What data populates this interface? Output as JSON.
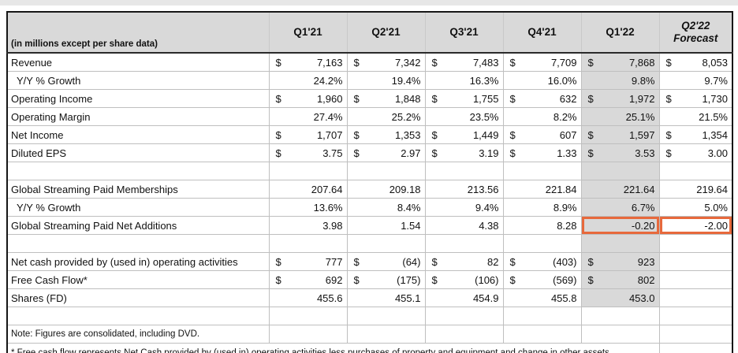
{
  "window": {
    "top_strip_color": "#e7e7e7",
    "page_bg": "#ffffff"
  },
  "table": {
    "unit_note": "(in millions except per share data)",
    "colors": {
      "header_bg": "#d9d9d9",
      "highlight_column_bg": "#d9d9d9",
      "grid_line": "#bfbfbf",
      "outer_border": "#161616",
      "callout_border": "#e7693c"
    },
    "columns": [
      {
        "id": "q1-21",
        "label": "Q1'21"
      },
      {
        "id": "q2-21",
        "label": "Q2'21"
      },
      {
        "id": "q3-21",
        "label": "Q3'21"
      },
      {
        "id": "q4-21",
        "label": "Q4'21"
      },
      {
        "id": "q1-22",
        "label": "Q1'22",
        "highlight_column": true
      },
      {
        "id": "q2-22-forecast",
        "label": "Q2'22",
        "label_line2": "Forecast",
        "italic": true
      }
    ],
    "rows": [
      {
        "type": "data",
        "label": "Revenue",
        "gray": true,
        "cells": [
          {
            "d": "$",
            "v": "7,163"
          },
          {
            "d": "$",
            "v": "7,342"
          },
          {
            "d": "$",
            "v": "7,483"
          },
          {
            "d": "$",
            "v": "7,709"
          },
          {
            "d": "$",
            "v": "7,868"
          },
          {
            "d": "$",
            "v": "8,053"
          }
        ]
      },
      {
        "type": "data",
        "label": "Y/Y % Growth",
        "indent": true,
        "gray": true,
        "cells": [
          {
            "v": "24.2%"
          },
          {
            "v": "19.4%"
          },
          {
            "v": "16.3%"
          },
          {
            "v": "16.0%"
          },
          {
            "v": "9.8%"
          },
          {
            "v": "9.7%"
          }
        ]
      },
      {
        "type": "data",
        "label": "Operating Income",
        "gray": true,
        "cells": [
          {
            "d": "$",
            "v": "1,960"
          },
          {
            "d": "$",
            "v": "1,848"
          },
          {
            "d": "$",
            "v": "1,755"
          },
          {
            "d": "$",
            "v": "632"
          },
          {
            "d": "$",
            "v": "1,972"
          },
          {
            "d": "$",
            "v": "1,730"
          }
        ]
      },
      {
        "type": "data",
        "label": "Operating Margin",
        "gray": true,
        "cells": [
          {
            "v": "27.4%"
          },
          {
            "v": "25.2%"
          },
          {
            "v": "23.5%"
          },
          {
            "v": "8.2%"
          },
          {
            "v": "25.1%"
          },
          {
            "v": "21.5%"
          }
        ]
      },
      {
        "type": "data",
        "label": "Net Income",
        "gray": true,
        "cells": [
          {
            "d": "$",
            "v": "1,707"
          },
          {
            "d": "$",
            "v": "1,353"
          },
          {
            "d": "$",
            "v": "1,449"
          },
          {
            "d": "$",
            "v": "607"
          },
          {
            "d": "$",
            "v": "1,597"
          },
          {
            "d": "$",
            "v": "1,354"
          }
        ]
      },
      {
        "type": "data",
        "label": "Diluted EPS",
        "gray": true,
        "cells": [
          {
            "d": "$",
            "v": "3.75"
          },
          {
            "d": "$",
            "v": "2.97"
          },
          {
            "d": "$",
            "v": "3.19"
          },
          {
            "d": "$",
            "v": "1.33"
          },
          {
            "d": "$",
            "v": "3.53"
          },
          {
            "d": "$",
            "v": "3.00"
          }
        ]
      },
      {
        "type": "spacer",
        "gray": true
      },
      {
        "type": "data",
        "label": "Global Streaming Paid Memberships",
        "gray": true,
        "cells": [
          {
            "v": "207.64"
          },
          {
            "v": "209.18"
          },
          {
            "v": "213.56"
          },
          {
            "v": "221.84"
          },
          {
            "v": "221.64"
          },
          {
            "v": "219.64"
          }
        ]
      },
      {
        "type": "data",
        "label": "Y/Y % Growth",
        "indent": true,
        "gray": true,
        "cells": [
          {
            "v": "13.6%"
          },
          {
            "v": "8.4%"
          },
          {
            "v": "9.4%"
          },
          {
            "v": "8.9%"
          },
          {
            "v": "6.7%"
          },
          {
            "v": "5.0%"
          }
        ]
      },
      {
        "type": "data",
        "label": "Global Streaming Paid Net Additions",
        "gray": true,
        "cells": [
          {
            "v": "3.98"
          },
          {
            "v": "1.54"
          },
          {
            "v": "4.38"
          },
          {
            "v": "8.28"
          },
          {
            "v": "-0.20",
            "callout": true
          },
          {
            "v": "-2.00",
            "callout": true
          }
        ]
      },
      {
        "type": "spacer",
        "gray": true
      },
      {
        "type": "data",
        "label": "Net cash provided by (used in) operating activities",
        "gray": true,
        "cells": [
          {
            "d": "$",
            "v": "777"
          },
          {
            "d": "$",
            "v": "(64)"
          },
          {
            "d": "$",
            "v": "82"
          },
          {
            "d": "$",
            "v": "(403)"
          },
          {
            "d": "$",
            "v": "923"
          },
          null
        ]
      },
      {
        "type": "data",
        "label": "Free Cash Flow*",
        "gray": true,
        "cells": [
          {
            "d": "$",
            "v": "692"
          },
          {
            "d": "$",
            "v": "(175)"
          },
          {
            "d": "$",
            "v": "(106)"
          },
          {
            "d": "$",
            "v": "(569)"
          },
          {
            "d": "$",
            "v": "802"
          },
          null
        ]
      },
      {
        "type": "data",
        "label": "Shares (FD)",
        "gray": true,
        "cells": [
          {
            "v": "455.6"
          },
          {
            "v": "455.1"
          },
          {
            "v": "454.9"
          },
          {
            "v": "455.8"
          },
          {
            "v": "453.0"
          },
          null
        ]
      },
      {
        "type": "spacer",
        "gray": false
      },
      {
        "type": "note",
        "label": "Note: Figures are consolidated, including DVD."
      },
      {
        "type": "footnote",
        "label": "* Free cash flow represents Net Cash provided by (used in) operating activities less purchases of property and equipment and change in other assets."
      }
    ]
  }
}
